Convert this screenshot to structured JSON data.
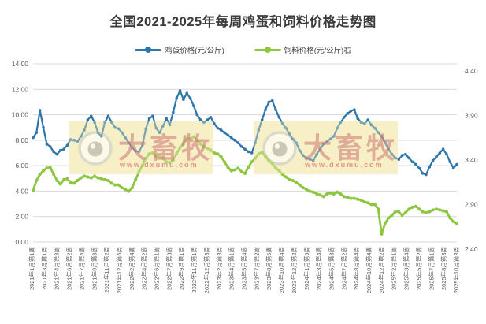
{
  "title": "全国2021-2025年每周鸡蛋和饲料价格走势图",
  "watermark": {
    "brand": "大畜牧",
    "url": "www.dxumu.com"
  },
  "colors": {
    "egg_line": "#2E75A8",
    "feed_line": "#8DC63F",
    "grid": "#D9D9D9",
    "axis_text": "#595959",
    "title_text": "#3B3B3B",
    "watermark_fill": "#F6EFC2",
    "watermark_text": "#C96A6A",
    "watermark_url": "#E57A7A"
  },
  "chart_data": {
    "type": "line",
    "title": "全国2021-2025年每周鸡蛋和饲料价格走势图",
    "x_start": "2021年1月第1周",
    "x_end": "2025年10月第3周",
    "week_interval_between_points": 2,
    "grid": "horizontal-only",
    "legend_position": "top-center",
    "x_labels": [
      "2021年1月第1周",
      "2021年3月第1周",
      "2021年4月第3周",
      "2021年6月第2周",
      "2021年7月第4周",
      "2021年9月第3周",
      "2021年11月第2周",
      "2021年12月第5周",
      "2022年2月第4周",
      "2022年4月第2周",
      "2022年6月第1周",
      "2022年7月第3周",
      "2022年9月第1周",
      "2022年11月第1周",
      "2022年12月第3周",
      "2023年2月第3周",
      "2023年4月第1周",
      "2023年5月第4周",
      "2023年7月第2周",
      "2023年8月第5周",
      "2023年10月第4周",
      "2023年12月第2周",
      "2024年1月第5周",
      "2024年3月第4周",
      "2024年5月第3周",
      "2024年7月第2周",
      "2024年8月第4周",
      "2024年10月第4周",
      "2024年12月第2周",
      "2025年2月第1周",
      "2025年3月第4周",
      "2025年5月第2周",
      "2025年7月第1周",
      "2025年8月第3周",
      "2025年10月第3周"
    ],
    "left_axis": {
      "min": 0,
      "max": 14,
      "tick_step": 2,
      "ticks": [
        "14.00",
        "12.00",
        "10.00",
        "8.00",
        "6.00",
        "4.00",
        "2.00",
        "0.00"
      ]
    },
    "right_axis": {
      "min": 2.4,
      "max": 4.4,
      "tick_step": 0.5,
      "ticks": [
        "4.40",
        "3.90",
        "3.40",
        "2.90",
        "2.40"
      ]
    },
    "series": [
      {
        "name": "鸡蛋价格(元/公斤)",
        "axis": "left",
        "color": "#2E75A8",
        "values": [
          8.2,
          8.6,
          10.35,
          9.0,
          7.7,
          7.5,
          7.1,
          6.9,
          7.2,
          7.3,
          7.6,
          8.05,
          8.0,
          7.9,
          8.3,
          8.8,
          9.6,
          9.9,
          9.4,
          8.6,
          8.3,
          9.4,
          9.9,
          9.4,
          9.0,
          8.9,
          8.6,
          8.2,
          7.8,
          7.4,
          7.15,
          7.1,
          7.6,
          8.9,
          9.7,
          9.9,
          8.95,
          8.6,
          9.1,
          9.7,
          9.2,
          10.2,
          11.3,
          11.9,
          11.2,
          11.7,
          11.3,
          10.7,
          10.0,
          9.6,
          9.4,
          9.6,
          9.8,
          9.3,
          8.95,
          8.8,
          8.6,
          8.4,
          8.2,
          8.0,
          7.8,
          7.5,
          7.3,
          7.1,
          7.0,
          7.8,
          8.8,
          9.6,
          10.4,
          11.0,
          11.1,
          10.4,
          9.8,
          9.3,
          8.95,
          8.5,
          8.1,
          7.8,
          7.2,
          6.8,
          6.6,
          6.5,
          6.4,
          6.9,
          7.3,
          7.7,
          7.9,
          8.1,
          8.3,
          8.95,
          9.4,
          9.8,
          10.1,
          10.3,
          10.4,
          9.7,
          9.4,
          9.3,
          9.6,
          9.2,
          8.95,
          8.6,
          8.3,
          7.8,
          7.3,
          6.9,
          6.6,
          6.5,
          6.8,
          6.9,
          6.6,
          6.3,
          6.1,
          5.8,
          5.4,
          5.3,
          5.9,
          6.4,
          6.7,
          7.0,
          7.3,
          6.9,
          6.3,
          5.8,
          6.1
        ]
      },
      {
        "name": "饲料价格(元/公斤)右",
        "axis": "right",
        "color": "#8DC63F",
        "values": [
          2.98,
          3.09,
          3.16,
          3.2,
          3.23,
          3.24,
          3.16,
          3.09,
          3.05,
          3.1,
          3.11,
          3.07,
          3.06,
          3.09,
          3.12,
          3.14,
          3.13,
          3.12,
          3.14,
          3.12,
          3.11,
          3.1,
          3.09,
          3.06,
          3.04,
          3.04,
          3.01,
          2.99,
          2.97,
          3.01,
          3.1,
          3.19,
          3.26,
          3.34,
          3.39,
          3.4,
          3.36,
          3.36,
          3.34,
          3.3,
          3.29,
          3.32,
          3.39,
          3.46,
          3.51,
          3.56,
          3.56,
          3.58,
          3.54,
          3.5,
          3.47,
          3.45,
          3.43,
          3.4,
          3.39,
          3.36,
          3.3,
          3.24,
          3.2,
          3.21,
          3.23,
          3.19,
          3.17,
          3.24,
          3.3,
          3.34,
          3.39,
          3.41,
          3.36,
          3.31,
          3.28,
          3.23,
          3.2,
          3.16,
          3.13,
          3.1,
          3.09,
          3.07,
          3.04,
          3.01,
          2.99,
          2.97,
          2.96,
          2.94,
          2.93,
          2.91,
          2.94,
          2.95,
          2.94,
          2.96,
          2.94,
          2.91,
          2.9,
          2.89,
          2.89,
          2.88,
          2.87,
          2.85,
          2.84,
          2.82,
          2.82,
          2.77,
          2.49,
          2.61,
          2.67,
          2.7,
          2.74,
          2.74,
          2.7,
          2.73,
          2.77,
          2.79,
          2.8,
          2.77,
          2.74,
          2.73,
          2.74,
          2.76,
          2.77,
          2.76,
          2.75,
          2.74,
          2.67,
          2.63,
          2.61
        ]
      }
    ]
  }
}
